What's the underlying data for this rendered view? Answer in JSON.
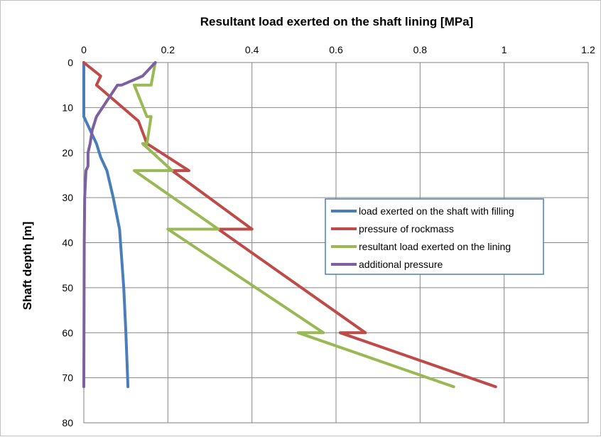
{
  "chart_data": {
    "type": "line",
    "title": "",
    "xlabel": "Resultant load exerted on the shaft lining [MPa]",
    "ylabel": "Shaft depth [m]",
    "xlim": [
      0,
      1.2
    ],
    "ylim": [
      0,
      80
    ],
    "y_inverted": true,
    "x_axis_position": "top",
    "x_ticks": [
      "0",
      "0.2",
      "0.4",
      "0.6",
      "0.8",
      "1",
      "1.2"
    ],
    "y_ticks": [
      "0",
      "10",
      "20",
      "30",
      "40",
      "50",
      "60",
      "70",
      "80"
    ],
    "grid": true,
    "legend_position": "right-middle",
    "series": [
      {
        "name": "load exerted on the shaft with filling",
        "color": "#4a7ebb",
        "points": [
          [
            0,
            0
          ],
          [
            0,
            12
          ],
          [
            0.01,
            14
          ],
          [
            0.02,
            16
          ],
          [
            0.03,
            18
          ],
          [
            0.04,
            21
          ],
          [
            0.055,
            24
          ],
          [
            0.07,
            30
          ],
          [
            0.085,
            37
          ],
          [
            0.095,
            50
          ],
          [
            0.1,
            60
          ],
          [
            0.105,
            72
          ]
        ]
      },
      {
        "name": "pressure of rockmass",
        "color": "#be4b48",
        "points": [
          [
            0,
            0
          ],
          [
            0.04,
            3
          ],
          [
            0.03,
            5
          ],
          [
            0.13,
            13
          ],
          [
            0.15,
            18
          ],
          [
            0.25,
            24
          ],
          [
            0.21,
            24
          ],
          [
            0.4,
            37
          ],
          [
            0.32,
            37
          ],
          [
            0.67,
            60
          ],
          [
            0.61,
            60
          ],
          [
            0.98,
            72
          ]
        ]
      },
      {
        "name": "resultant load exerted on the lining",
        "color": "#98b954",
        "points": [
          [
            0.17,
            0
          ],
          [
            0.16,
            5
          ],
          [
            0.12,
            5
          ],
          [
            0.15,
            12
          ],
          [
            0.16,
            12
          ],
          [
            0.15,
            18
          ],
          [
            0.14,
            18
          ],
          [
            0.21,
            24
          ],
          [
            0.12,
            24
          ],
          [
            0.32,
            37
          ],
          [
            0.2,
            37
          ],
          [
            0.57,
            60
          ],
          [
            0.51,
            60
          ],
          [
            0.88,
            72
          ]
        ]
      },
      {
        "name": "additional pressure",
        "color": "#7d60a0",
        "points": [
          [
            0.17,
            0
          ],
          [
            0.14,
            3
          ],
          [
            0.09,
            5
          ],
          [
            0.08,
            5
          ],
          [
            0.03,
            12
          ],
          [
            0.02,
            15
          ],
          [
            0.015,
            18
          ],
          [
            0.01,
            20
          ],
          [
            0.01,
            23
          ],
          [
            0.005,
            24
          ],
          [
            0.002,
            30
          ],
          [
            0.001,
            40
          ],
          [
            0,
            72
          ]
        ]
      }
    ]
  }
}
